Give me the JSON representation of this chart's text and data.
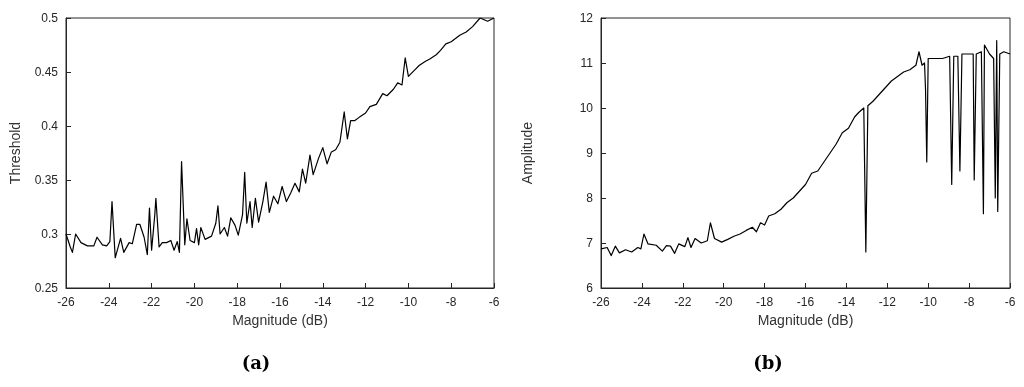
{
  "chart_data": [
    {
      "type": "line",
      "xlabel": "Magnitude (dB)",
      "ylabel": "Threshold",
      "annotations": [
        "(a)"
      ],
      "marker": "none",
      "line_style": "solid",
      "xlim": [
        -26,
        -6
      ],
      "ylim": [
        0.25,
        0.5
      ],
      "xticks": [
        -26,
        -24,
        -22,
        -20,
        -18,
        -16,
        -14,
        -12,
        -10,
        -8,
        -6
      ],
      "yticks": [
        0.25,
        0.3,
        0.35,
        0.4,
        0.45,
        0.5
      ],
      "series": [
        {
          "color": "#000000",
          "x": [
            -26,
            -25.8,
            -25.7,
            -25.55,
            -25.3,
            -25,
            -24.7,
            -24.55,
            -24.3,
            -24.1,
            -23.95,
            -23.85,
            -23.7,
            -23.45,
            -23.3,
            -23.05,
            -22.9,
            -22.7,
            -22.55,
            -22.35,
            -22.2,
            -22.1,
            -22,
            -21.85,
            -21.8,
            -21.65,
            -21.5,
            -21.3,
            -21.1,
            -20.95,
            -20.8,
            -20.7,
            -20.6,
            -20.45,
            -20.35,
            -20.2,
            -20,
            -19.9,
            -19.8,
            -19.7,
            -19.5,
            -19.2,
            -19,
            -18.9,
            -18.8,
            -18.6,
            -18.45,
            -18.3,
            -18.1,
            -17.95,
            -17.75,
            -17.65,
            -17.55,
            -17.4,
            -17.3,
            -17.15,
            -17,
            -16.8,
            -16.65,
            -16.5,
            -16.3,
            -16.1,
            -15.9,
            -15.7,
            -15.5,
            -15.3,
            -15.1,
            -14.95,
            -14.8,
            -14.6,
            -14.45,
            -14.2,
            -14,
            -13.8,
            -13.6,
            -13.4,
            -13.2,
            -13,
            -12.85,
            -12.7,
            -12.5,
            -12.3,
            -12,
            -11.8,
            -11.5,
            -11.2,
            -11,
            -10.7,
            -10.5,
            -10.3,
            -10.15,
            -10,
            -9.7,
            -9.5,
            -9.2,
            -9,
            -8.7,
            -8.5,
            -8.25,
            -8,
            -7.6,
            -7.3,
            -7,
            -6.65,
            -6.3,
            -6
          ],
          "values": [
            0.3,
            0.288,
            0.283,
            0.3,
            0.292,
            0.289,
            0.289,
            0.297,
            0.29,
            0.289,
            0.293,
            0.33,
            0.278,
            0.296,
            0.283,
            0.292,
            0.291,
            0.309,
            0.309,
            0.297,
            0.281,
            0.324,
            0.285,
            0.318,
            0.333,
            0.288,
            0.292,
            0.292,
            0.294,
            0.285,
            0.293,
            0.283,
            0.367,
            0.29,
            0.314,
            0.294,
            0.292,
            0.305,
            0.29,
            0.306,
            0.295,
            0.298,
            0.31,
            0.326,
            0.3,
            0.306,
            0.298,
            0.315,
            0.308,
            0.299,
            0.318,
            0.357,
            0.31,
            0.33,
            0.306,
            0.333,
            0.311,
            0.33,
            0.348,
            0.32,
            0.335,
            0.328,
            0.344,
            0.33,
            0.338,
            0.347,
            0.339,
            0.36,
            0.347,
            0.373,
            0.355,
            0.37,
            0.38,
            0.365,
            0.376,
            0.378,
            0.385,
            0.413,
            0.388,
            0.405,
            0.405,
            0.408,
            0.412,
            0.418,
            0.42,
            0.43,
            0.428,
            0.434,
            0.44,
            0.438,
            0.463,
            0.446,
            0.452,
            0.456,
            0.46,
            0.462,
            0.466,
            0.47,
            0.476,
            0.478,
            0.484,
            0.487,
            0.492,
            0.5,
            0.497,
            0.5
          ]
        }
      ]
    },
    {
      "type": "line",
      "xlabel": "Magnitude (dB)",
      "ylabel": "Amplitude",
      "annotations": [
        "(b)"
      ],
      "marker": "none",
      "line_style": "solid",
      "xlim": [
        -26,
        -6
      ],
      "ylim": [
        6,
        12
      ],
      "xticks": [
        -26,
        -24,
        -22,
        -20,
        -18,
        -16,
        -14,
        -12,
        -10,
        -8,
        -6
      ],
      "yticks": [
        6,
        7,
        8,
        9,
        10,
        11,
        12
      ],
      "series": [
        {
          "color": "#000000",
          "x": [
            -26,
            -25.7,
            -25.5,
            -25.3,
            -25.1,
            -24.8,
            -24.5,
            -24.2,
            -24.05,
            -23.9,
            -23.7,
            -23.3,
            -23,
            -22.8,
            -22.6,
            -22.4,
            -22.2,
            -21.9,
            -21.75,
            -21.6,
            -21.4,
            -21.1,
            -20.8,
            -20.65,
            -20.45,
            -20.1,
            -19.8,
            -19.5,
            -19.2,
            -18.9,
            -18.6,
            -18.4,
            -18.2,
            -18,
            -17.8,
            -17.5,
            -17.2,
            -16.9,
            -16.6,
            -16.3,
            -16,
            -15.7,
            -15.4,
            -15.1,
            -14.8,
            -14.5,
            -14.2,
            -13.9,
            -13.6,
            -13.4,
            -13.15,
            -13.05,
            -12.95,
            -12.7,
            -12.4,
            -12.1,
            -11.8,
            -11.5,
            -11.2,
            -10.9,
            -10.6,
            -10.45,
            -10.3,
            -10.18,
            -10.13,
            -10.07,
            -10,
            -9.7,
            -9.3,
            -8.95,
            -8.85,
            -8.75,
            -8.55,
            -8.45,
            -8.35,
            -8,
            -7.8,
            -7.75,
            -7.65,
            -7.4,
            -7.3,
            -7.25,
            -7,
            -6.8,
            -6.72,
            -6.65,
            -6.6,
            -6.5,
            -6.3,
            -6
          ],
          "values": [
            6.87,
            6.9,
            6.72,
            6.93,
            6.78,
            6.85,
            6.8,
            6.9,
            6.87,
            7.2,
            6.98,
            6.95,
            6.82,
            6.94,
            6.93,
            6.77,
            6.98,
            6.92,
            7.12,
            6.9,
            7.1,
            7,
            7.05,
            7.45,
            7.1,
            7.02,
            7.08,
            7.15,
            7.2,
            7.28,
            7.35,
            7.25,
            7.45,
            7.4,
            7.6,
            7.65,
            7.75,
            7.9,
            8,
            8.15,
            8.3,
            8.55,
            8.6,
            8.8,
            9,
            9.2,
            9.45,
            9.55,
            9.8,
            9.9,
            10,
            6.8,
            10.05,
            10.15,
            10.3,
            10.45,
            10.6,
            10.7,
            10.8,
            10.85,
            10.95,
            11.25,
            10.95,
            11,
            10.4,
            8.8,
            11.1,
            11.1,
            11.1,
            11.15,
            8.3,
            11.15,
            11.15,
            8.6,
            11.2,
            11.2,
            11.2,
            8.4,
            11.2,
            11.25,
            7.65,
            11.4,
            11.2,
            11.1,
            8,
            11.5,
            7.7,
            11.2,
            11.25,
            11.2
          ]
        }
      ]
    }
  ]
}
